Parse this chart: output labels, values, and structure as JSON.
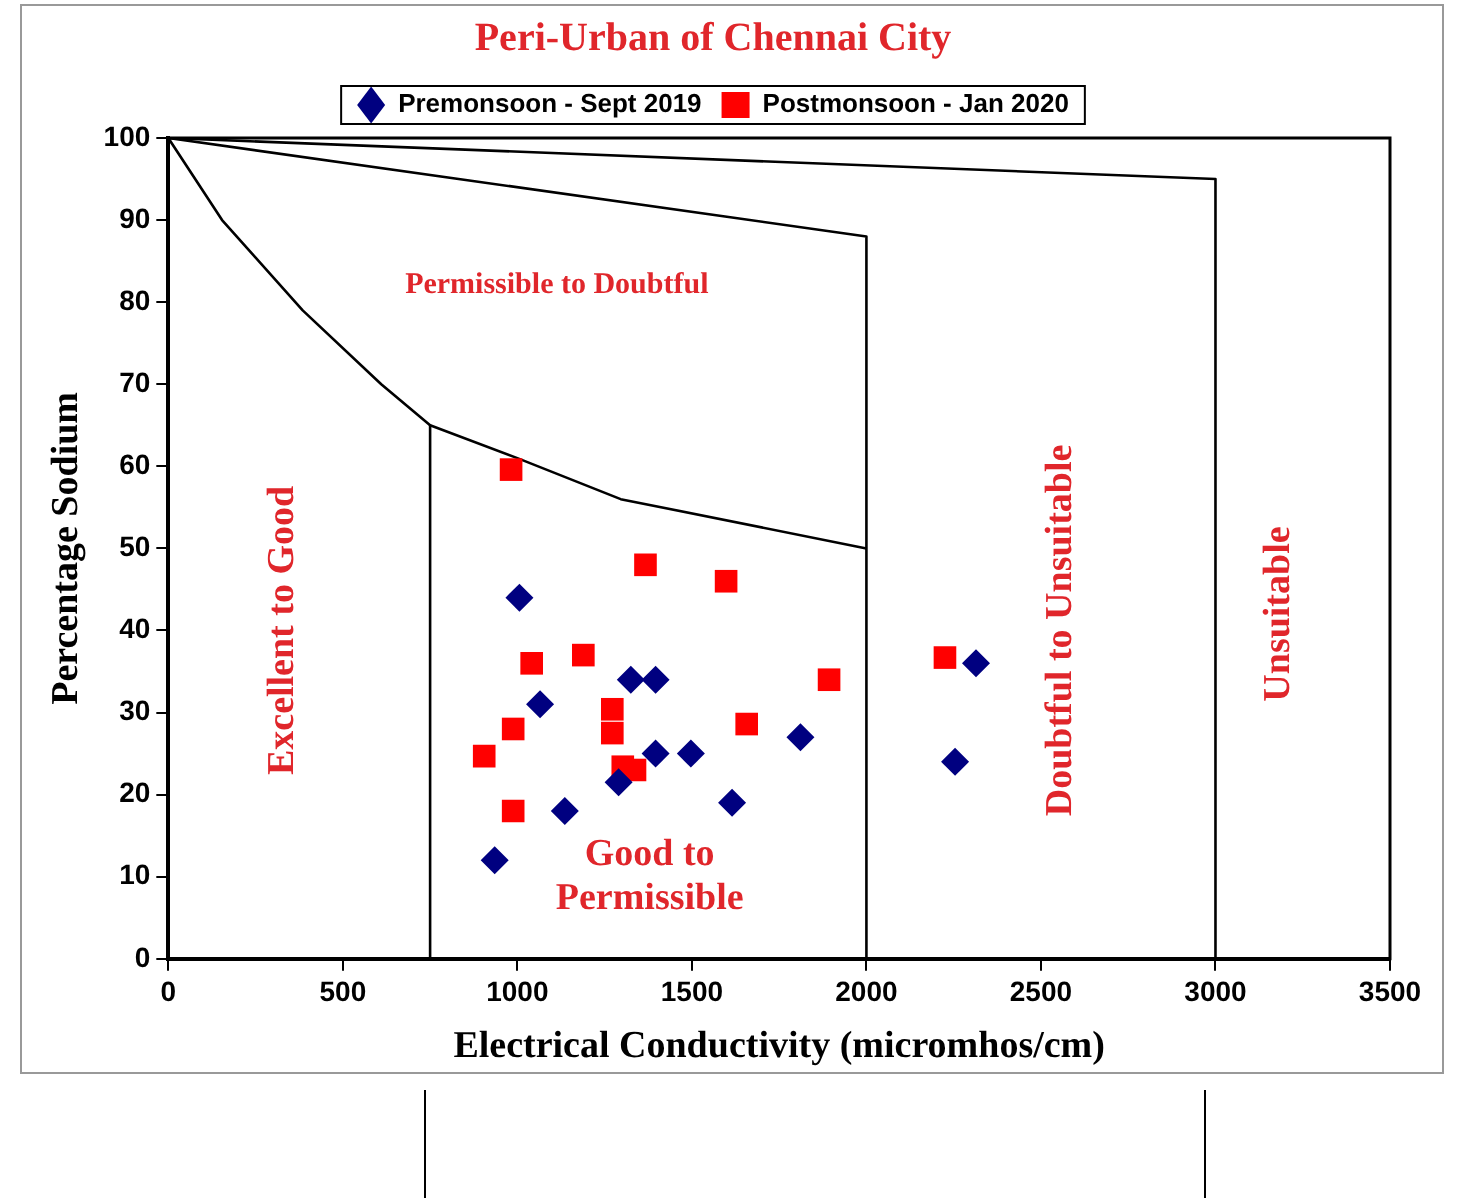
{
  "chart_data": {
    "type": "scatter",
    "title": "Peri-Urban of Chennai City",
    "xlabel": "Electrical Conductivity (micromhos/cm)",
    "ylabel": "Percentage Sodium",
    "xlim": [
      0,
      3500
    ],
    "xticks": [
      0,
      500,
      1000,
      1500,
      2000,
      2500,
      3000,
      3500
    ],
    "ylim": [
      0,
      100
    ],
    "yticks": [
      0,
      10,
      20,
      30,
      40,
      50,
      60,
      70,
      80,
      90,
      100
    ],
    "grid": false,
    "legend": "top",
    "series": [
      {
        "name": "Premonsoon - Sept 2019",
        "marker": "diamond",
        "color": "#000080",
        "x": [
          935,
          1006,
          1065,
          1136,
          1290,
          1325,
          1396,
          1396,
          1497,
          1615,
          1811,
          2254,
          2314
        ],
        "values": [
          12,
          44,
          31,
          18,
          21.5,
          34,
          34,
          25,
          25,
          19,
          27,
          24,
          36
        ]
      },
      {
        "name": "Postmonsoon - Jan 2020",
        "marker": "square",
        "color": "#ff0000",
        "x": [
          905,
          982,
          988,
          988,
          1041,
          1189,
          1272,
          1272,
          1302,
          1337,
          1367,
          1598,
          1657,
          1893,
          2225
        ],
        "values": [
          24.7,
          59.6,
          28,
          18,
          36,
          37,
          30.4,
          27.5,
          23.4,
          23,
          48,
          46,
          28.6,
          34,
          36.7
        ]
      },
      {
        "type": "line",
        "color": "#000000",
        "x": [
          0,
          154,
          385,
          610,
          750,
          1000,
          1296,
          2000
        ],
        "values": [
          100,
          90,
          79,
          70,
          65,
          61,
          56,
          50
        ]
      },
      {
        "type": "line",
        "color": "#000000",
        "x": [
          750,
          750
        ],
        "values": [
          65,
          0
        ]
      },
      {
        "type": "line",
        "color": "#000000",
        "x": [
          0,
          2000,
          2000
        ],
        "values": [
          100,
          88,
          0
        ]
      },
      {
        "type": "line",
        "color": "#000000",
        "x": [
          0,
          3000,
          3000
        ],
        "values": [
          100,
          95,
          0
        ]
      }
    ],
    "annotations": [
      "Permissible to Doubtful",
      "Excellent to Good",
      "Good to Permissible",
      "Doubtful to Unsuitable",
      "Unsuitable"
    ]
  }
}
